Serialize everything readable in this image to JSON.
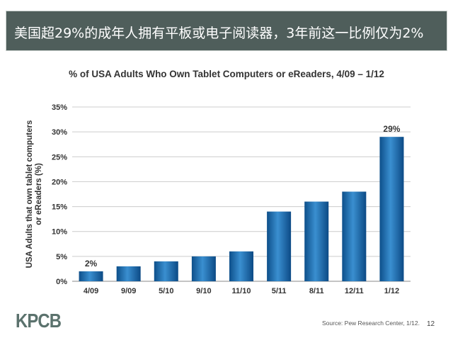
{
  "header": {
    "title": "美国超29%的成年人拥有平板或电子阅读器，3年前这一比例仅为2%"
  },
  "chart_data": {
    "type": "bar",
    "title": "% of USA Adults Who Own Tablet Computers or eReaders, 4/09 – 1/12",
    "ylabel": "USA Adults that own tablet computers or eReaders (%)",
    "xlabel": "",
    "categories": [
      "4/09",
      "9/09",
      "5/10",
      "9/10",
      "11/10",
      "5/11",
      "8/11",
      "12/11",
      "1/12"
    ],
    "values": [
      2,
      3,
      4,
      5,
      6,
      14,
      16,
      18,
      29
    ],
    "data_labels": {
      "0": "2%",
      "8": "29%"
    },
    "ylim": [
      0,
      35
    ],
    "yticks": [
      "0%",
      "5%",
      "10%",
      "15%",
      "20%",
      "25%",
      "30%",
      "35%"
    ],
    "grid": true,
    "bar_color": "#1f6fae"
  },
  "footer": {
    "logo": "KPCB",
    "source": "Source: Pew Research Center, 1/12.",
    "page": "12"
  }
}
